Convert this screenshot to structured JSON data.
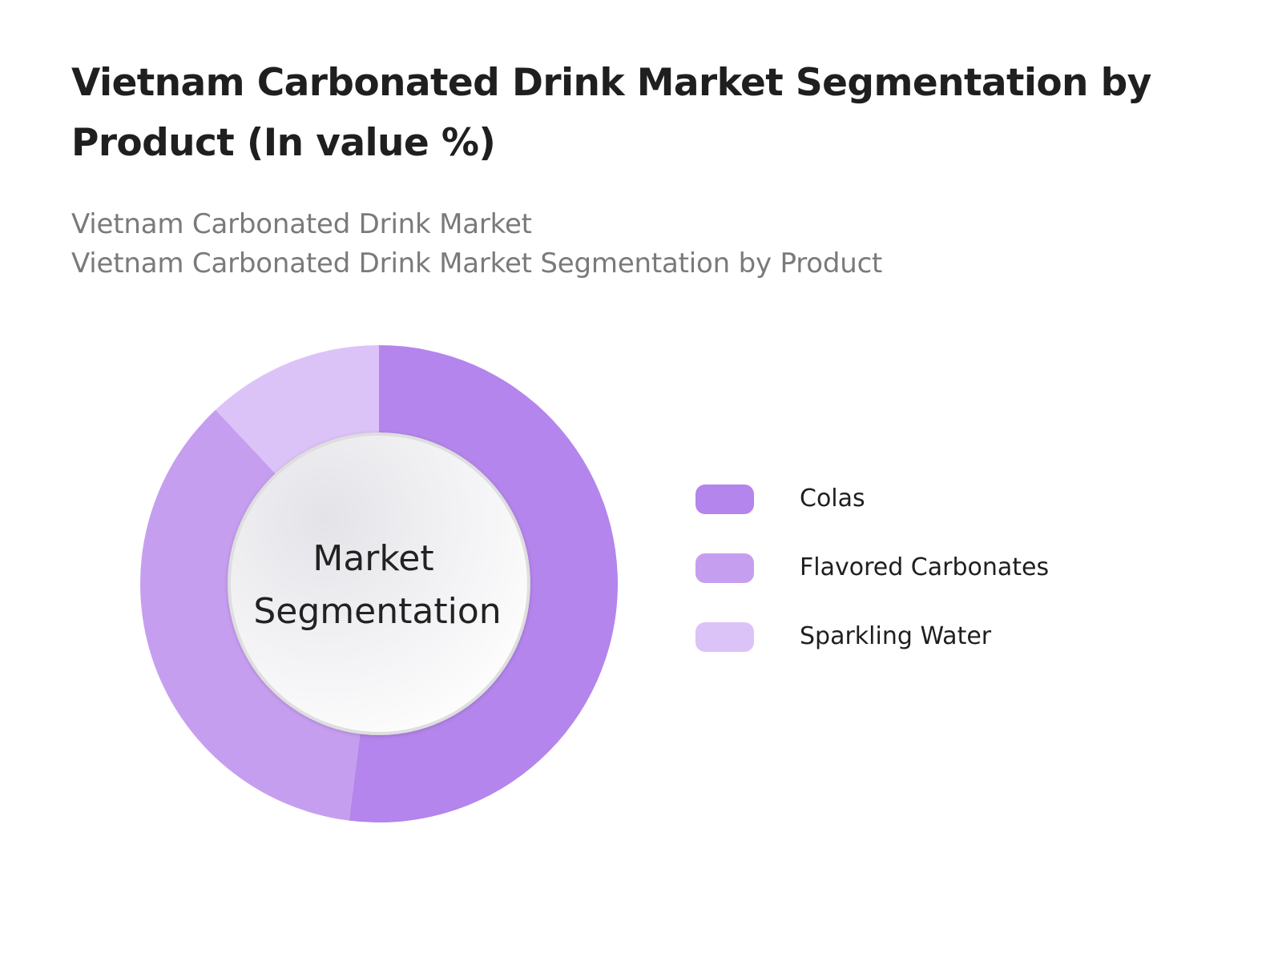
{
  "chart_data": {
    "type": "pie",
    "variant": "donut",
    "title": "Vietnam Carbonated Drink Market Segmentation by Product (In value %)",
    "subtitle_lines": [
      "Vietnam Carbonated Drink Market",
      "Vietnam Carbonated Drink Market Segmentation by Product"
    ],
    "center_label": [
      "Market",
      "Segmentation"
    ],
    "legend_position": "right",
    "slices": [
      {
        "label": "Colas",
        "value": 52,
        "color": "#b485ec"
      },
      {
        "label": "Flavored Carbonates",
        "value": 36,
        "color": "#c69ef0"
      },
      {
        "label": "Sparkling Water",
        "value": 12,
        "color": "#dcc3f7"
      }
    ]
  }
}
